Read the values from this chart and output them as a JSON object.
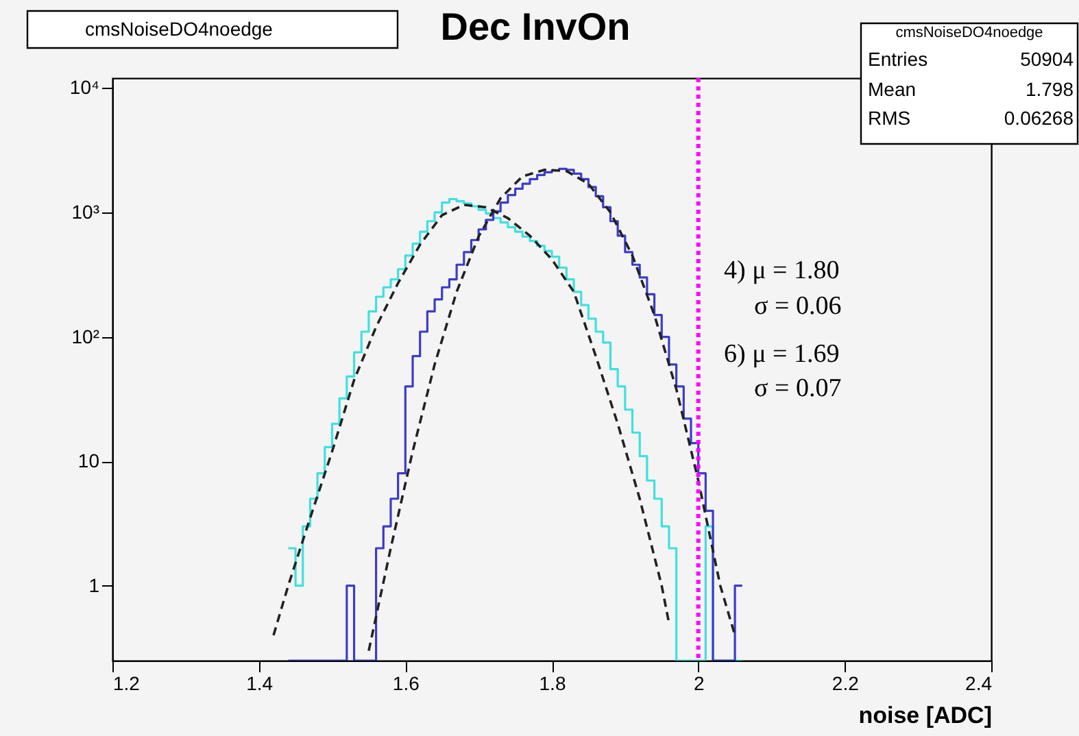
{
  "chart_data": {
    "type": "histogram",
    "title": "Dec InvOn",
    "xlabel": "noise [ADC]",
    "bins": [
      1.44,
      1.45,
      1.46,
      1.47,
      1.48,
      1.49,
      1.5,
      1.51,
      1.52,
      1.53,
      1.54,
      1.55,
      1.56,
      1.57,
      1.58,
      1.59,
      1.6,
      1.61,
      1.62,
      1.63,
      1.64,
      1.65,
      1.66,
      1.67,
      1.68,
      1.69,
      1.7,
      1.71,
      1.72,
      1.73,
      1.74,
      1.75,
      1.76,
      1.77,
      1.78,
      1.79,
      1.8,
      1.81,
      1.82,
      1.83,
      1.84,
      1.85,
      1.86,
      1.87,
      1.88,
      1.89,
      1.9,
      1.91,
      1.92,
      1.93,
      1.94,
      1.95,
      1.96,
      1.97,
      1.98,
      1.99,
      2.0,
      2.01,
      2.02,
      2.03,
      2.04,
      2.05,
      2.06
    ],
    "series": [
      {
        "color": "#40e0e0",
        "values": [
          2,
          1,
          3,
          5,
          8,
          13,
          20,
          32,
          48,
          75,
          110,
          160,
          210,
          250,
          290,
          350,
          450,
          560,
          700,
          850,
          1000,
          1200,
          1280,
          1230,
          1180,
          1120,
          1050,
          980,
          900,
          830,
          760,
          700,
          640,
          590,
          540,
          490,
          440,
          360,
          290,
          230,
          180,
          140,
          110,
          90,
          55,
          40,
          26,
          17,
          11,
          7,
          5,
          3,
          2,
          null,
          null,
          null,
          null,
          3,
          null,
          null,
          null,
          null
        ]
      },
      {
        "color": "#3c3cc8",
        "values": [
          null,
          null,
          null,
          null,
          null,
          null,
          null,
          null,
          1,
          null,
          null,
          null,
          2,
          3,
          5,
          8,
          40,
          70,
          110,
          160,
          200,
          250,
          290,
          380,
          480,
          600,
          730,
          870,
          1020,
          1200,
          1380,
          1550,
          1700,
          1850,
          2000,
          2100,
          2180,
          2240,
          2200,
          2050,
          1850,
          1600,
          1350,
          1100,
          850,
          650,
          480,
          380,
          300,
          220,
          150,
          100,
          60,
          40,
          22,
          14,
          8,
          4,
          null,
          null,
          null,
          1
        ]
      },
      {
        "type": "line",
        "color": "#222222",
        "line_style": "dashed",
        "x": [
          1.42,
          1.44,
          1.47,
          1.5,
          1.53,
          1.56,
          1.59,
          1.62,
          1.65,
          1.68,
          1.71,
          1.74,
          1.77,
          1.8,
          1.83,
          1.86,
          1.89,
          1.92,
          1.95,
          1.96
        ],
        "values": [
          0.4,
          1,
          3.5,
          12,
          45,
          120,
          270,
          550,
          950,
          1150,
          1100,
          900,
          650,
          420,
          230,
          70,
          20,
          5,
          1,
          0.5
        ]
      },
      {
        "type": "line",
        "color": "#222222",
        "line_style": "dashed",
        "x": [
          1.55,
          1.58,
          1.61,
          1.64,
          1.67,
          1.7,
          1.73,
          1.76,
          1.79,
          1.82,
          1.85,
          1.88,
          1.91,
          1.94,
          1.97,
          2.0,
          2.03,
          2.05
        ],
        "values": [
          0.3,
          2,
          12,
          60,
          230,
          640,
          1300,
          1950,
          2200,
          2150,
          1700,
          1000,
          450,
          150,
          38,
          7,
          1,
          0.4
        ]
      }
    ],
    "xlim": [
      1.2,
      2.4
    ],
    "xticks": [
      1.2,
      1.4,
      1.6,
      1.8,
      2,
      2.2,
      2.4
    ],
    "ylim": [
      0.25,
      12000
    ],
    "yticks": [
      1,
      10,
      {
        "value": 100,
        "label": "10²"
      },
      {
        "value": 1000,
        "label": "10³"
      },
      {
        "value": 10000,
        "label": "10⁴"
      }
    ],
    "log": true,
    "grid": false,
    "ref_lines": [
      {
        "axis": "x",
        "value": 2.0,
        "color": "#ff00ff",
        "line_style": "dotted"
      }
    ],
    "annotations": [
      "cmsNoiseDO4noedge",
      "cmsNoiseDO4noedge",
      "Entries",
      "50904",
      "Mean",
      "1.798",
      "RMS",
      "0.06268",
      "4) μ = 1.80",
      "σ = 0.06",
      "6) μ = 1.69",
      "σ = 0.07"
    ]
  }
}
